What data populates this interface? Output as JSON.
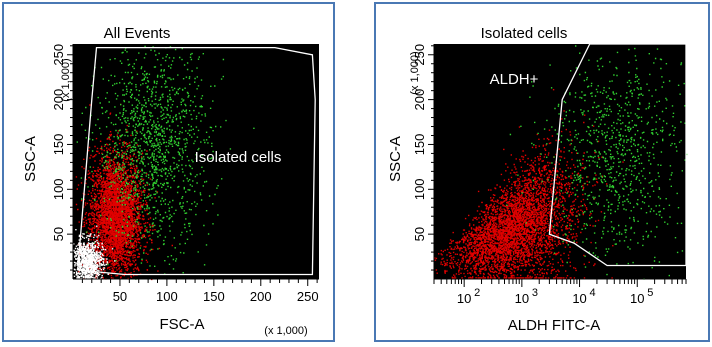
{
  "chart_data": [
    {
      "type": "scatter",
      "title": "All Events",
      "xlabel": "FSC-A",
      "ylabel": "SSC-A",
      "x_multiplier": "(x 1,000)",
      "y_multiplier": "(x 1,000)",
      "xlim": [
        0,
        262
      ],
      "ylim": [
        0,
        262
      ],
      "x_ticks": [
        "50",
        "100",
        "150",
        "200",
        "250"
      ],
      "y_ticks": [
        "50",
        "100",
        "150",
        "200",
        "250"
      ],
      "gate_label": "Isolated cells",
      "series": [
        {
          "color": "#e00000",
          "centroid": [
            45,
            70
          ],
          "spread_xy": [
            14,
            35
          ],
          "approx_points": 3500
        },
        {
          "color": "#30d030",
          "centroid": [
            85,
            150
          ],
          "spread_xy": [
            30,
            55
          ],
          "approx_points": 1300
        },
        {
          "color": "#ffffff",
          "centroid": [
            15,
            20
          ],
          "spread_xy": [
            8,
            12
          ],
          "approx_points": 900
        }
      ],
      "gate_polygon": [
        [
          5,
          10
        ],
        [
          20,
          200
        ],
        [
          25,
          258
        ],
        [
          215,
          258
        ],
        [
          255,
          250
        ],
        [
          258,
          200
        ],
        [
          255,
          5
        ],
        [
          130,
          5
        ],
        [
          55,
          5
        ]
      ],
      "grid": false,
      "background": "#000000"
    },
    {
      "type": "scatter",
      "title": "Isolated cells",
      "xlabel": "ALDH FITC-A",
      "ylabel": "SSC-A",
      "y_multiplier": "(x 1,000)",
      "x_scale": "log",
      "xlim": [
        30,
        700000
      ],
      "ylim": [
        0,
        262
      ],
      "x_ticks": [
        "10",
        "10",
        "10",
        "10"
      ],
      "x_tick_exponents": [
        "2",
        "3",
        "4",
        "5"
      ],
      "y_ticks": [
        "50",
        "100",
        "150",
        "200",
        "250"
      ],
      "gate_label": "ALDH+",
      "series": [
        {
          "color": "#e00000",
          "centroid": [
            800,
            60
          ],
          "spread_xy": [
            0.5,
            30
          ],
          "approx_points": 3800
        },
        {
          "color": "#30d030",
          "centroid": [
            40000,
            140
          ],
          "spread_xy": [
            0.6,
            60
          ],
          "approx_points": 900
        }
      ],
      "gate_polygon": [
        [
          15000,
          262
        ],
        [
          5000,
          200
        ],
        [
          3200,
          70
        ],
        [
          3000,
          50
        ],
        [
          8000,
          40
        ],
        [
          30000,
          15
        ],
        [
          700000,
          15
        ],
        [
          700000,
          262
        ]
      ],
      "grid": false,
      "background": "#000000"
    }
  ]
}
